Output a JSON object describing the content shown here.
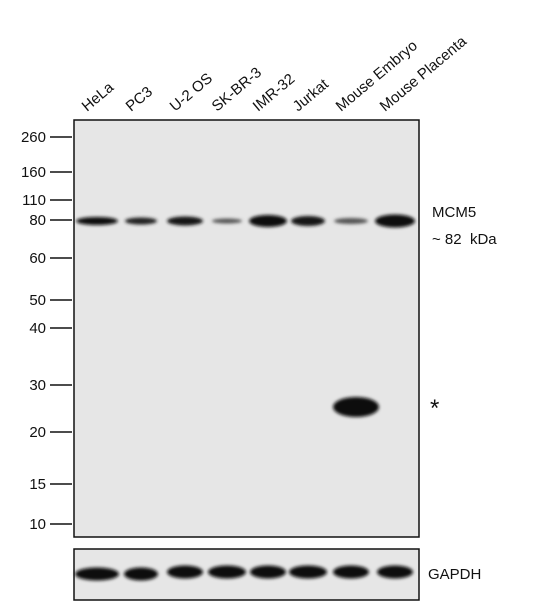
{
  "lanes": [
    "HeLa",
    "PC3",
    "U-2 OS",
    "SK-BR-3",
    "IMR-32",
    "Jurkat",
    "Mouse Embryo",
    "Mouse Placenta"
  ],
  "markers": [
    "260",
    "160",
    "110",
    "80",
    "60",
    "50",
    "40",
    "30",
    "20",
    "15",
    "10"
  ],
  "labels": {
    "protein": "MCM5",
    "size": "~ 82  kDa",
    "asterisk": "*",
    "loading": "GAPDH"
  }
}
